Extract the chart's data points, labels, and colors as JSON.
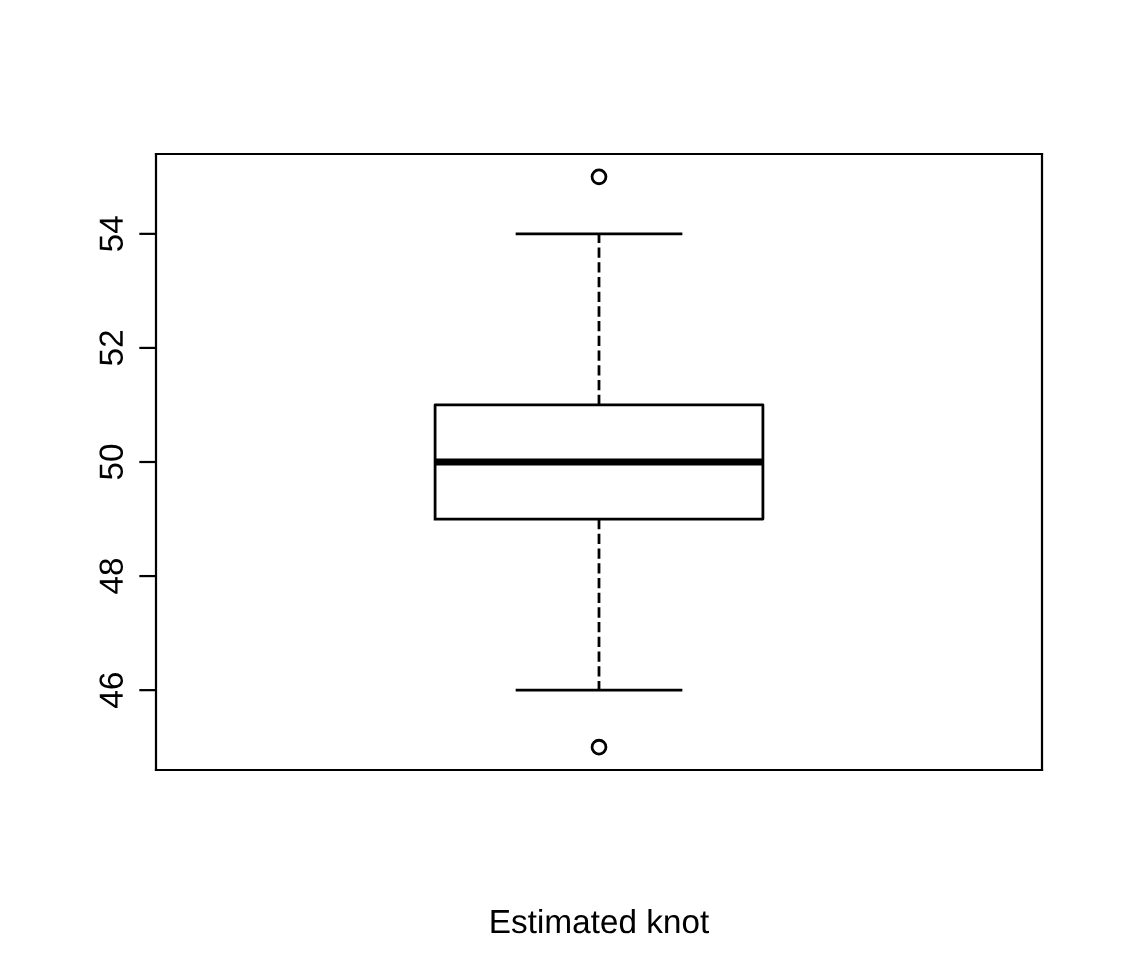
{
  "chart_data": {
    "type": "box",
    "xlabel": "Estimated knot",
    "categories": [
      null
    ],
    "boxes": [
      {
        "low": 46,
        "q1": 49,
        "median": 50,
        "q3": 51,
        "high": 54,
        "outliers": [
          45,
          55
        ]
      }
    ],
    "ylim": [
      44.6,
      55.4
    ],
    "yticks": [
      46,
      48,
      50,
      52,
      54
    ],
    "tick_labels": "y",
    "grid": false,
    "line_style": "dashed",
    "color": "#000000"
  }
}
